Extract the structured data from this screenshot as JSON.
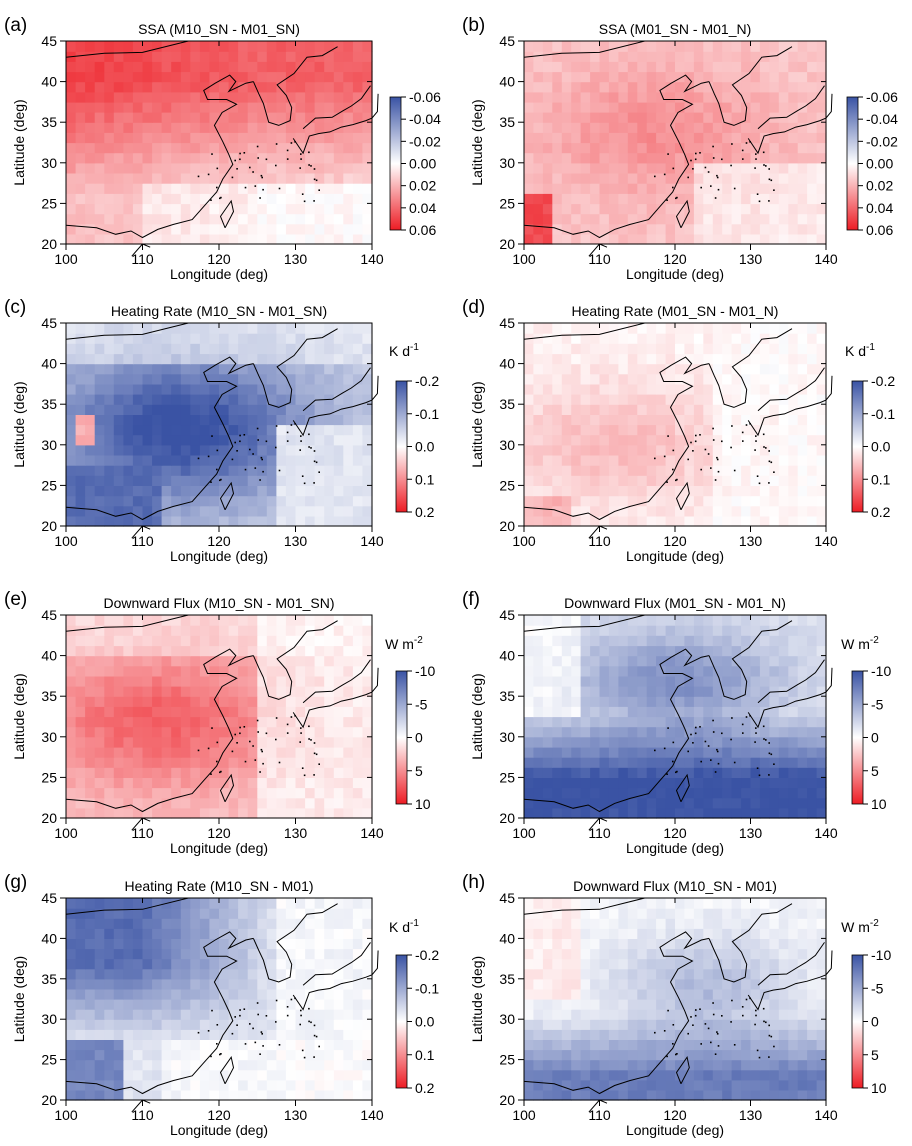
{
  "chart_data": [
    {
      "type": "heatmap",
      "panel": "(a)",
      "title": "SSA (M10_SN - M01_SN)",
      "xlabel": "Longitude (deg)",
      "ylabel": "Latitude (deg)",
      "xlim": [
        100,
        140
      ],
      "ylim": [
        20,
        45
      ],
      "x_ticks": [
        100,
        110,
        120,
        130,
        140
      ],
      "y_ticks": [
        20,
        25,
        30,
        35,
        40,
        45
      ],
      "colorbar": {
        "unit": "",
        "ticks": [
          "-0.06",
          "-0.04",
          "-0.02",
          "0.00",
          "0.02",
          "0.04",
          "0.06"
        ],
        "range": [
          -0.06,
          0.06
        ],
        "top_color": "#3a53a4",
        "mid_color": "#ffffff",
        "bottom_color": "#ed1c24"
      },
      "field": "dense_east_asia_positive",
      "region_values": [
        {
          "region": "north (40-45N)",
          "value": 0.045
        },
        {
          "region": "central (30-40N)",
          "value": 0.035
        },
        {
          "region": "south (20-30N)",
          "value": 0.01
        }
      ]
    },
    {
      "type": "heatmap",
      "panel": "(b)",
      "title": "SSA (M01_SN - M01_N)",
      "xlabel": "Longitude (deg)",
      "ylabel": "Latitude (deg)",
      "xlim": [
        100,
        140
      ],
      "ylim": [
        20,
        45
      ],
      "x_ticks": [
        100,
        110,
        120,
        130,
        140
      ],
      "y_ticks": [
        20,
        25,
        30,
        35,
        40,
        45
      ],
      "colorbar": {
        "unit": "",
        "ticks": [
          "-0.06",
          "-0.04",
          "-0.02",
          "0.00",
          "0.02",
          "0.04",
          "0.06"
        ],
        "range": [
          -0.06,
          0.06
        ],
        "top_color": "#3a53a4",
        "mid_color": "#ffffff",
        "bottom_color": "#ed1c24"
      },
      "field": "moderate_positive",
      "region_values": [
        {
          "region": "central (30-40N)",
          "value": 0.025
        },
        {
          "region": "south-west corner",
          "value": 0.05
        },
        {
          "region": "south-east",
          "value": 0.005
        }
      ]
    },
    {
      "type": "heatmap",
      "panel": "(c)",
      "title": "Heating Rate (M10_SN - M01_SN)",
      "xlabel": "Longitude (deg)",
      "ylabel": "Latitude (deg)",
      "xlim": [
        100,
        140
      ],
      "ylim": [
        20,
        45
      ],
      "x_ticks": [
        100,
        110,
        120,
        130,
        140
      ],
      "y_ticks": [
        20,
        25,
        30,
        35,
        40,
        45
      ],
      "colorbar": {
        "unit": "K d",
        "unit_sup": "-1",
        "ticks": [
          "-0.2",
          "-0.1",
          "0.0",
          "0.1",
          "0.2"
        ],
        "range": [
          -0.2,
          0.2
        ],
        "top_color": "#3a53a4",
        "mid_color": "#ffffff",
        "bottom_color": "#ed1c24"
      },
      "field": "strong_negative",
      "region_values": [
        {
          "region": "central/west (25-40N, 100-125E)",
          "value": -0.2
        },
        {
          "region": "south-east ocean",
          "value": -0.05
        }
      ]
    },
    {
      "type": "heatmap",
      "panel": "(d)",
      "title": "Heating Rate (M01_SN - M01_N)",
      "xlabel": "Longitude (deg)",
      "ylabel": "Latitude (deg)",
      "xlim": [
        100,
        140
      ],
      "ylim": [
        20,
        45
      ],
      "x_ticks": [
        100,
        110,
        120,
        130,
        140
      ],
      "y_ticks": [
        20,
        25,
        30,
        35,
        40,
        45
      ],
      "colorbar": {
        "unit": "K d",
        "unit_sup": "-1",
        "ticks": [
          "-0.2",
          "-0.1",
          "0.0",
          "0.1",
          "0.2"
        ],
        "range": [
          -0.2,
          0.2
        ],
        "top_color": "#3a53a4",
        "mid_color": "#ffffff",
        "bottom_color": "#ed1c24"
      },
      "field": "weak_positive",
      "region_values": [
        {
          "region": "central (25-35N)",
          "value": 0.06
        },
        {
          "region": "east ocean",
          "value": 0.0
        }
      ]
    },
    {
      "type": "heatmap",
      "panel": "(e)",
      "title": "Downward Flux (M10_SN - M01_SN)",
      "xlabel": "Longitude (deg)",
      "ylabel": "Latitude (deg)",
      "xlim": [
        100,
        140
      ],
      "ylim": [
        20,
        45
      ],
      "x_ticks": [
        100,
        110,
        120,
        130,
        140
      ],
      "y_ticks": [
        20,
        25,
        30,
        35,
        40,
        45
      ],
      "colorbar": {
        "unit": "W m",
        "unit_sup": "-2",
        "ticks": [
          "-10",
          "-5",
          "0",
          "5",
          "10"
        ],
        "range": [
          -10,
          10
        ],
        "top_color": "#3a53a4",
        "mid_color": "#ffffff",
        "bottom_color": "#ed1c24"
      },
      "field": "moderate_positive_flux",
      "region_values": [
        {
          "region": "central (25-38N)",
          "value": 6
        },
        {
          "region": "east ocean",
          "value": 1
        }
      ]
    },
    {
      "type": "heatmap",
      "panel": "(f)",
      "title": "Downward Flux (M01_SN - M01_N)",
      "xlabel": "Longitude (deg)",
      "ylabel": "Latitude (deg)",
      "xlim": [
        100,
        140
      ],
      "ylim": [
        20,
        45
      ],
      "x_ticks": [
        100,
        110,
        120,
        130,
        140
      ],
      "y_ticks": [
        20,
        25,
        30,
        35,
        40,
        45
      ],
      "colorbar": {
        "unit": "W m",
        "unit_sup": "-2",
        "ticks": [
          "-10",
          "-5",
          "0",
          "5",
          "10"
        ],
        "range": [
          -10,
          10
        ],
        "top_color": "#3a53a4",
        "mid_color": "#ffffff",
        "bottom_color": "#ed1c24"
      },
      "field": "strong_negative_south",
      "region_values": [
        {
          "region": "south (20-32N)",
          "value": -10
        },
        {
          "region": "north-west",
          "value": -2
        }
      ]
    },
    {
      "type": "heatmap",
      "panel": "(g)",
      "title": "Heating Rate (M10_SN - M01)",
      "xlabel": "Longitude (deg)",
      "ylabel": "Latitude (deg)",
      "xlim": [
        100,
        140
      ],
      "ylim": [
        20,
        45
      ],
      "x_ticks": [
        100,
        110,
        120,
        130,
        140
      ],
      "y_ticks": [
        20,
        25,
        30,
        35,
        40,
        45
      ],
      "colorbar": {
        "unit": "K d",
        "unit_sup": "-1",
        "ticks": [
          "-0.2",
          "-0.1",
          "0.0",
          "0.1",
          "0.2"
        ],
        "range": [
          -0.2,
          0.2
        ],
        "top_color": "#3a53a4",
        "mid_color": "#ffffff",
        "bottom_color": "#ed1c24"
      },
      "field": "negative_north",
      "region_values": [
        {
          "region": "north/central (30-45N)",
          "value": -0.18
        },
        {
          "region": "south-east",
          "value": -0.02
        }
      ]
    },
    {
      "type": "heatmap",
      "panel": "(h)",
      "title": "Downward Flux (M10_SN - M01)",
      "xlabel": "Longitude (deg)",
      "ylabel": "Latitude (deg)",
      "xlim": [
        100,
        140
      ],
      "ylim": [
        20,
        45
      ],
      "x_ticks": [
        100,
        110,
        120,
        130,
        140
      ],
      "y_ticks": [
        20,
        25,
        30,
        35,
        40,
        45
      ],
      "colorbar": {
        "unit": "W m",
        "unit_sup": "-2",
        "ticks": [
          "-10",
          "-5",
          "0",
          "5",
          "10"
        ],
        "range": [
          -10,
          10
        ],
        "top_color": "#3a53a4",
        "mid_color": "#ffffff",
        "bottom_color": "#ed1c24"
      },
      "field": "negative_south_moderate",
      "region_values": [
        {
          "region": "south (20-30N)",
          "value": -8
        },
        {
          "region": "north-west",
          "value": 0
        }
      ]
    }
  ]
}
